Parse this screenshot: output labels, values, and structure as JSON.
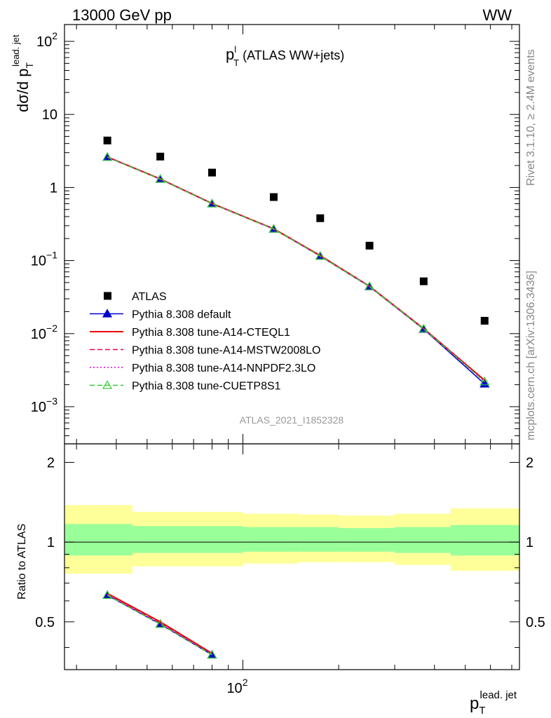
{
  "header": {
    "left": "13000 GeV pp",
    "right": "WW"
  },
  "side_labels": {
    "rivet": "Rivet 3.1.10, ≥ 2.4M events",
    "mcplots": "mcplots.cern.ch [arXiv:1306.3436]"
  },
  "analysis_id": "ATLAS_2021_I1852328",
  "colors": {
    "atlas": "#000000",
    "default": "#0000cc",
    "a14_cteql1": "#ee0000",
    "a14_mstw": "#ee0044",
    "a14_nnpdf": "#dd00dd",
    "cuetp8s1": "#33cc33",
    "band_outer": "#ffff99",
    "band_inner": "#99ff99"
  },
  "chart_data": {
    "type": "line",
    "title": {
      "main": "p",
      "sup": "l",
      "sub": "T",
      "rest": " (ATLAS WW+jets)"
    },
    "ylabel": {
      "main": "dσ/d p",
      "sub": "T",
      "sup": "lead. jet"
    },
    "xlabel": {
      "main": "p",
      "sub": "T",
      "sup": "lead. jet"
    },
    "xscale": "log",
    "yscale": "log",
    "xlim": [
      27.5,
      740
    ],
    "ylim": [
      0.00031,
      170
    ],
    "x_tick_labels": [
      {
        "value": 100,
        "base": "10",
        "exp": "2"
      }
    ],
    "y_tick_labels": [
      {
        "value": 100,
        "base": "10",
        "exp": "2"
      },
      {
        "value": 10,
        "base": "10",
        "exp": ""
      },
      {
        "value": 1,
        "base": "1",
        "exp": ""
      },
      {
        "value": 0.1,
        "base": "10",
        "exp": "−1"
      },
      {
        "value": 0.01,
        "base": "10",
        "exp": "−2"
      },
      {
        "value": 0.001,
        "base": "10",
        "exp": "−3"
      }
    ],
    "legend_position": "lower-left",
    "x": [
      37.5,
      55,
      80,
      125,
      175,
      250,
      370,
      575
    ],
    "series": [
      {
        "name": "ATLAS",
        "key": "atlas",
        "style": "square",
        "values": [
          4.4,
          2.65,
          1.6,
          0.74,
          0.38,
          0.16,
          0.052,
          0.015
        ]
      },
      {
        "name": "Pythia 8.308 default",
        "key": "default",
        "style": "line-triangle",
        "values": [
          2.6,
          1.3,
          0.6,
          0.27,
          0.115,
          0.044,
          0.0115,
          0.00205
        ]
      },
      {
        "name": "Pythia 8.308 tune-A14-CTEQL1",
        "key": "a14_cteql1",
        "style": "line",
        "values": [
          2.62,
          1.31,
          0.605,
          0.272,
          0.117,
          0.0445,
          0.0117,
          0.0023
        ]
      },
      {
        "name": "Pythia 8.308 tune-A14-MSTW2008LO",
        "key": "a14_mstw",
        "style": "dashed",
        "values": [
          2.61,
          1.3,
          0.6,
          0.27,
          0.116,
          0.0443,
          0.0116,
          0.00225
        ]
      },
      {
        "name": "Pythia 8.308 tune-A14-NNPDF2.3LO",
        "key": "a14_nnpdf",
        "style": "dotted",
        "values": [
          2.6,
          1.3,
          0.6,
          0.27,
          0.115,
          0.0442,
          0.0116,
          0.0022
        ]
      },
      {
        "name": "Pythia 8.308 tune-CUETP8S1",
        "key": "cuetp8s1",
        "style": "dashed-triangle-open",
        "values": [
          2.6,
          1.3,
          0.6,
          0.27,
          0.115,
          0.0442,
          0.0116,
          0.0022
        ]
      }
    ],
    "ratio": {
      "ylabel": "Ratio to ATLAS",
      "ylim": [
        0.33,
        2.35
      ],
      "y_tick_labels": [
        0.5,
        1,
        2
      ],
      "bins": [
        {
          "lo": 27.5,
          "hi": 45,
          "inner": [
            0.89,
            1.17
          ],
          "outer": [
            0.76,
            1.38
          ]
        },
        {
          "lo": 45,
          "hi": 100,
          "inner": [
            0.91,
            1.15
          ],
          "outer": [
            0.81,
            1.3
          ]
        },
        {
          "lo": 100,
          "hi": 150,
          "inner": [
            0.92,
            1.14
          ],
          "outer": [
            0.83,
            1.28
          ]
        },
        {
          "lo": 150,
          "hi": 200,
          "inner": [
            0.92,
            1.14
          ],
          "outer": [
            0.84,
            1.27
          ]
        },
        {
          "lo": 200,
          "hi": 300,
          "inner": [
            0.92,
            1.13
          ],
          "outer": [
            0.84,
            1.26
          ]
        },
        {
          "lo": 300,
          "hi": 450,
          "inner": [
            0.91,
            1.14
          ],
          "outer": [
            0.82,
            1.28
          ]
        },
        {
          "lo": 450,
          "hi": 740,
          "inner": [
            0.89,
            1.16
          ],
          "outer": [
            0.78,
            1.34
          ]
        }
      ],
      "x": [
        37.5,
        55,
        80
      ],
      "series": [
        {
          "key": "default",
          "style": "line-triangle",
          "values": [
            0.63,
            0.49,
            0.375
          ]
        },
        {
          "key": "a14_cteql1",
          "style": "line",
          "values": [
            0.64,
            0.5,
            0.38
          ]
        },
        {
          "key": "a14_mstw",
          "style": "dashed",
          "values": [
            0.635,
            0.495,
            0.378
          ]
        },
        {
          "key": "a14_nnpdf",
          "style": "dotted",
          "values": [
            0.632,
            0.492,
            0.376
          ]
        },
        {
          "key": "cuetp8s1",
          "style": "dashed-triangle-open",
          "values": [
            0.63,
            0.49,
            0.375
          ]
        }
      ]
    }
  }
}
